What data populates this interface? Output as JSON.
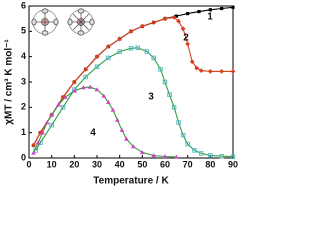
{
  "chart_data": {
    "type": "line",
    "x_label": "Temperature / K",
    "y_label": "χMT / cm³ K mol⁻¹",
    "xlim": [
      0,
      90
    ],
    "xticks": [
      0,
      10,
      20,
      30,
      40,
      50,
      60,
      70,
      80,
      90
    ],
    "ylim": [
      0,
      6
    ],
    "yticks": [
      0,
      1,
      2,
      3,
      4,
      5,
      6
    ],
    "series": [
      {
        "name": "1",
        "color": "#000000",
        "line_color": "#000000",
        "marker": "square",
        "x": [
          2,
          5,
          10,
          15,
          20,
          25,
          30,
          35,
          40,
          45,
          50,
          55,
          60,
          65,
          70,
          75,
          80,
          85,
          90
        ],
        "values": [
          0.5,
          1.0,
          1.7,
          2.4,
          3.0,
          3.5,
          4.0,
          4.4,
          4.7,
          5.0,
          5.2,
          5.35,
          5.5,
          5.6,
          5.7,
          5.78,
          5.85,
          5.9,
          5.95
        ]
      },
      {
        "name": "2",
        "color": "#d9401f",
        "line_color": "#d9401f",
        "marker": "diamond",
        "x": [
          2,
          5,
          10,
          15,
          20,
          25,
          30,
          35,
          40,
          45,
          50,
          55,
          60,
          64,
          66,
          68,
          70,
          72,
          74,
          76,
          80,
          85,
          90
        ],
        "values": [
          0.5,
          1.0,
          1.7,
          2.4,
          3.0,
          3.5,
          4.0,
          4.4,
          4.7,
          5.0,
          5.2,
          5.35,
          5.5,
          5.55,
          5.4,
          5.1,
          4.5,
          3.8,
          3.55,
          3.45,
          3.42,
          3.42,
          3.42
        ]
      },
      {
        "name": "3",
        "color": "#4fb3c4",
        "line_color": "#2e9e3e",
        "marker": "open-square",
        "x": [
          3,
          5,
          10,
          15,
          20,
          25,
          30,
          35,
          40,
          45,
          48,
          52,
          55,
          58,
          60,
          62,
          64,
          66,
          68,
          70,
          73,
          76,
          80,
          85,
          90
        ],
        "values": [
          0.3,
          0.6,
          1.3,
          2.0,
          2.7,
          3.2,
          3.6,
          3.95,
          4.2,
          4.33,
          4.35,
          4.2,
          3.95,
          3.5,
          3.0,
          2.5,
          2.0,
          1.4,
          0.9,
          0.55,
          0.3,
          0.18,
          0.1,
          0.07,
          0.05
        ]
      },
      {
        "name": "4",
        "color": "#d040c0",
        "line_color": "#2e9e3e",
        "marker": "triangle",
        "x": [
          2,
          4,
          6,
          8,
          10,
          13,
          16,
          20,
          24,
          27,
          30,
          33,
          35,
          37,
          39,
          41,
          43,
          46,
          50,
          55,
          60,
          65
        ],
        "values": [
          0.2,
          0.6,
          1.0,
          1.4,
          1.7,
          2.1,
          2.4,
          2.65,
          2.78,
          2.8,
          2.7,
          2.45,
          2.2,
          1.9,
          1.5,
          1.1,
          0.75,
          0.45,
          0.22,
          0.1,
          0.06,
          0.04
        ]
      }
    ]
  }
}
